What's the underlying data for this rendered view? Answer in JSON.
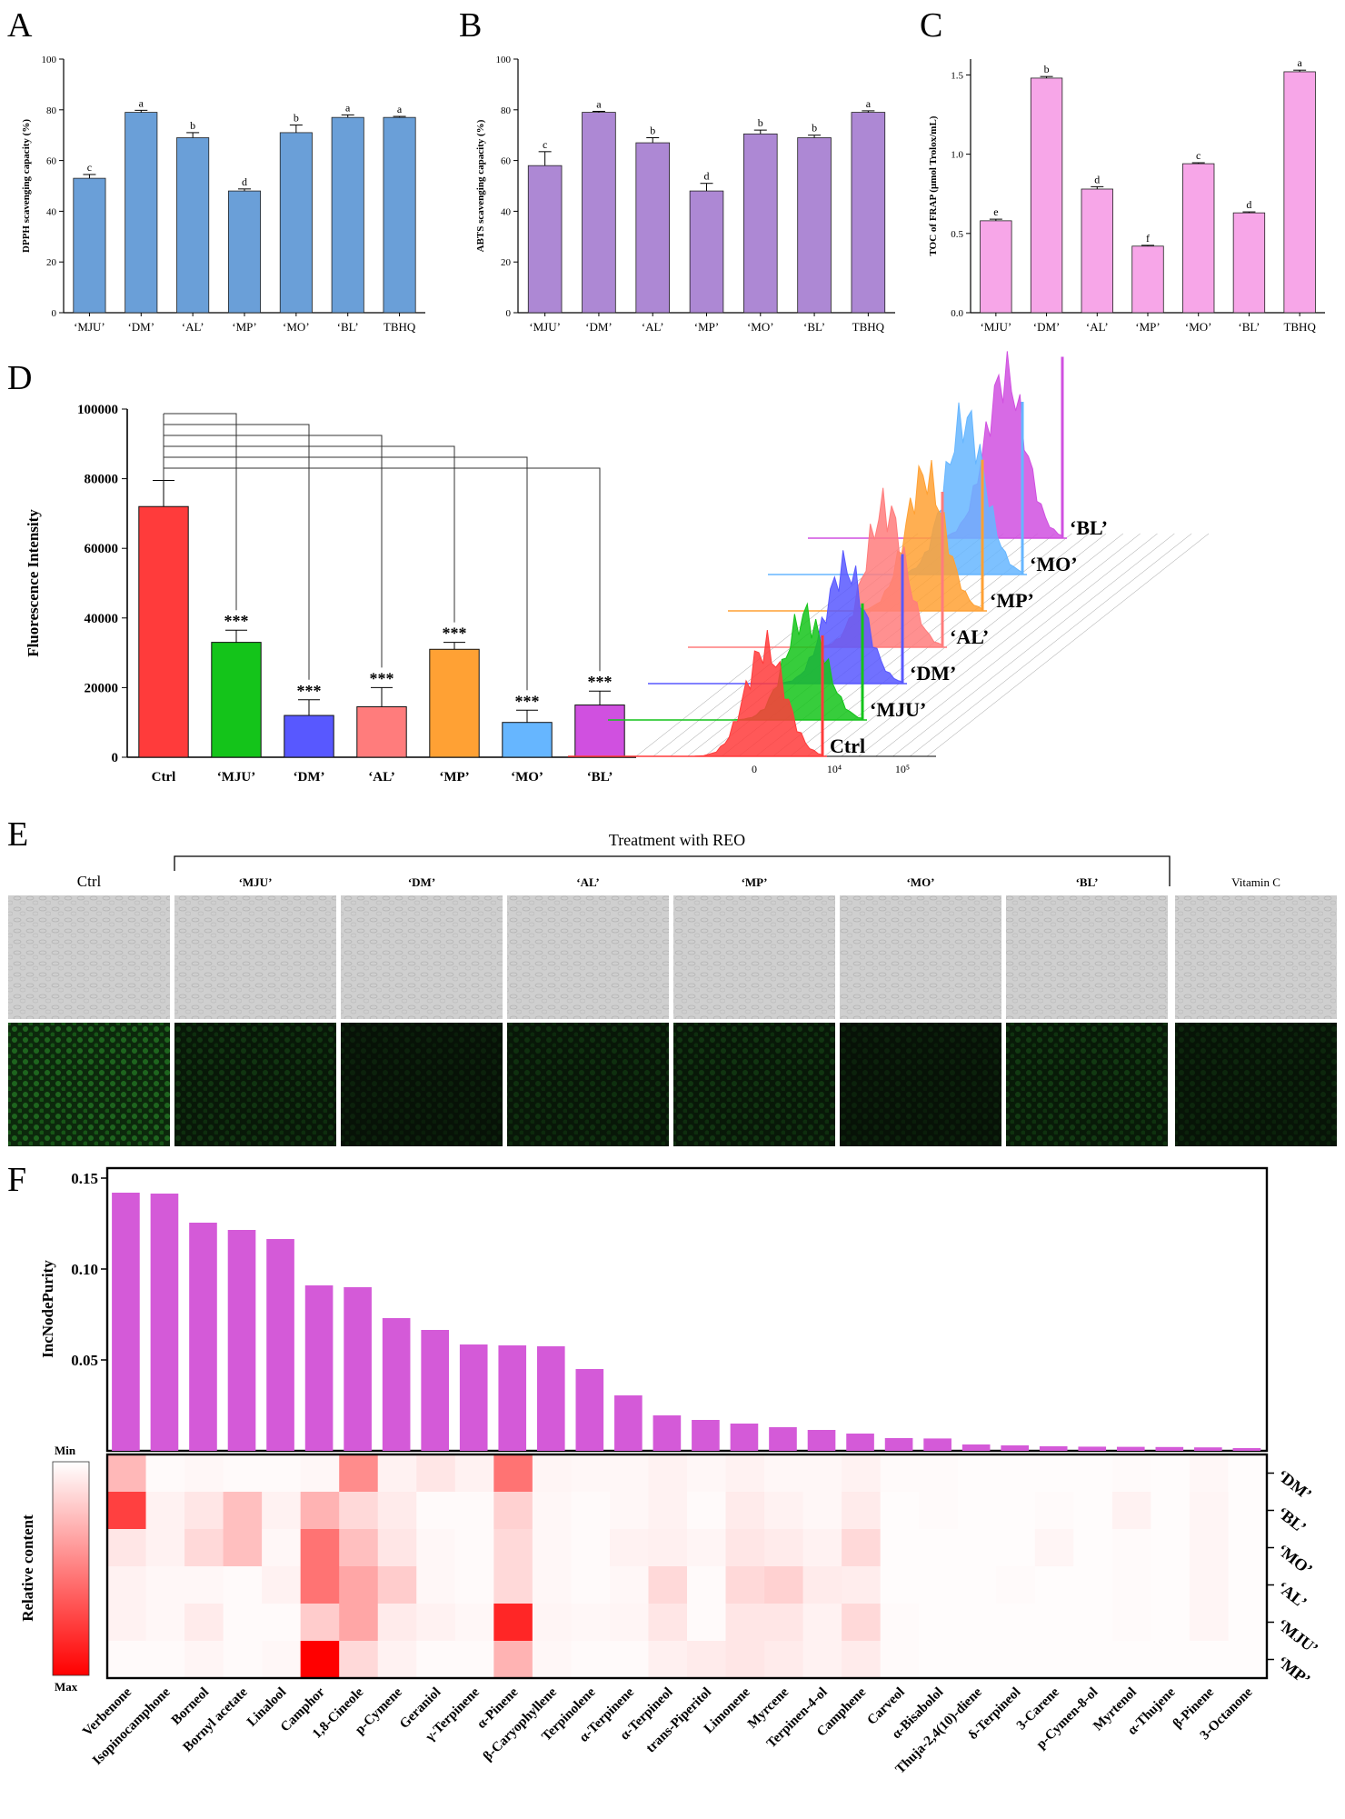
{
  "figure": {
    "panels": {
      "A": "A",
      "B": "B",
      "C": "C",
      "D": "D",
      "E": "E",
      "F": "F"
    }
  },
  "colors": {
    "dpph": "#6a9fd8",
    "abts": "#ad88d4",
    "frap": "#f7a6e8",
    "d": [
      "#ff3b3b",
      "#14c41a",
      "#5858ff",
      "#ff7c7c",
      "#ffa134",
      "#66b6ff",
      "#d050e0"
    ],
    "f_bar": "#d45ad8"
  },
  "chart_data": [
    {
      "id": "A",
      "type": "bar",
      "title": "",
      "ylabel": "DPPH scavenging capacity (%)",
      "categories": [
        "‘MJU’",
        "‘DM’",
        "‘AL’",
        "‘MP’",
        "‘MO’",
        "‘BL’",
        "TBHQ"
      ],
      "values": [
        53,
        79,
        69,
        48,
        71,
        77,
        77
      ],
      "errors": [
        1.5,
        0.8,
        2,
        0.8,
        3,
        1,
        0.4
      ],
      "letters": [
        "c",
        "a",
        "b",
        "d",
        "b",
        "a",
        "a"
      ],
      "yticks": [
        0,
        20,
        40,
        60,
        80,
        100
      ],
      "ylim": [
        0,
        100
      ]
    },
    {
      "id": "B",
      "type": "bar",
      "title": "",
      "ylabel": "ABTS scavenging capacity (%)",
      "categories": [
        "‘MJU’",
        "‘DM’",
        "‘AL’",
        "‘MP’",
        "‘MO’",
        "‘BL’",
        "TBHQ"
      ],
      "values": [
        58,
        79,
        67,
        48,
        70.5,
        69,
        79
      ],
      "errors": [
        5.5,
        0.4,
        2,
        3,
        1.5,
        1,
        0.6
      ],
      "letters": [
        "c",
        "a",
        "b",
        "d",
        "b",
        "b",
        "a"
      ],
      "yticks": [
        0,
        20,
        40,
        60,
        80,
        100
      ],
      "ylim": [
        0,
        100
      ]
    },
    {
      "id": "C",
      "type": "bar",
      "title": "",
      "ylabel": "TOC of FRAP (μmol Trolox/mL)",
      "categories": [
        "‘MJU’",
        "‘DM’",
        "‘AL’",
        "‘MP’",
        "‘MO’",
        "‘BL’",
        "TBHQ"
      ],
      "values": [
        0.58,
        1.48,
        0.78,
        0.42,
        0.94,
        0.63,
        1.52
      ],
      "errors": [
        0.01,
        0.01,
        0.015,
        0.005,
        0.006,
        0.006,
        0.01
      ],
      "letters": [
        "e",
        "b",
        "d",
        "f",
        "c",
        "d",
        "a"
      ],
      "yticks": [
        "0.0",
        "0.5",
        "1.0",
        "1.5"
      ],
      "ytick_values": [
        0,
        0.5,
        1.0,
        1.5
      ],
      "ylim": [
        0,
        1.6
      ]
    },
    {
      "id": "D",
      "type": "bar",
      "title": "",
      "ylabel": "Fluorescence Intensity",
      "categories": [
        "Ctrl",
        "‘MJU’",
        "‘DM’",
        "‘AL’",
        "‘MP’",
        "‘MO’",
        "‘BL’"
      ],
      "values": [
        72000,
        33000,
        12000,
        14500,
        31000,
        10000,
        15000
      ],
      "errors": [
        7500,
        3500,
        4500,
        5500,
        2000,
        3500,
        4000
      ],
      "sig": [
        "",
        "***",
        "***",
        "***",
        "***",
        "***",
        "***"
      ],
      "yticks": [
        "0",
        "20000",
        "40000",
        "60000",
        "80000",
        "100000"
      ],
      "ytick_values": [
        0,
        20000,
        40000,
        60000,
        80000,
        100000
      ],
      "ylim": [
        0,
        100000
      ],
      "histogram": {
        "labels": [
          "Ctrl",
          "‘MJU’",
          "‘DM’",
          "‘AL’",
          "‘MP’",
          "‘MO’",
          "‘BL’"
        ],
        "xticks": [
          "0",
          "10⁴",
          "10⁵"
        ]
      }
    },
    {
      "id": "F",
      "type": "bar",
      "title": "",
      "ylabel": "IncNodePurity",
      "yticks": [
        "0.05",
        "0.10",
        "0.15"
      ],
      "ytick_values": [
        0.05,
        0.1,
        0.15
      ],
      "ylim": [
        0,
        0.152
      ],
      "categories": [
        "Verbenone",
        "Isopinocamphone",
        "Borneol",
        "Bornyl acetate",
        "Linalool",
        "Camphor",
        "1,8-Cineole",
        "p-Cymene",
        "Geraniol",
        "γ-Terpinene",
        "α-Pinene",
        "β-Caryophyllene",
        "Terpinolene",
        "α-Terpinene",
        "α-Terpineol",
        "trans-Piperitol",
        "Limonene",
        "Myrcene",
        "Terpinen-4-ol",
        "Camphene",
        "Carveol",
        "α-Bisabolol",
        "Thuja-2,4(10)-diene",
        "δ-Terpineol",
        "3-Carene",
        "p-Cymen-8-ol",
        "Myrtenol",
        "α-Thujene",
        "β-Pinene",
        "3-Octanone"
      ],
      "values": [
        0.142,
        0.1415,
        0.1255,
        0.1215,
        0.1165,
        0.091,
        0.09,
        0.073,
        0.0665,
        0.0585,
        0.058,
        0.0575,
        0.045,
        0.0305,
        0.0195,
        0.017,
        0.015,
        0.013,
        0.0115,
        0.0095,
        0.007,
        0.0068,
        0.0035,
        0.003,
        0.0025,
        0.0023,
        0.0022,
        0.0021,
        0.0019,
        0.0015
      ],
      "heatmap": {
        "rows": [
          "‘DM’",
          "‘BL’",
          "‘MO’",
          "‘AL’",
          "‘MJU’",
          "‘MP’"
        ],
        "legend_title": "Relative content",
        "legend_min": "Min",
        "legend_max": "Max",
        "values": [
          [
            0.28,
            0.02,
            0.03,
            0.02,
            0.02,
            0.03,
            0.45,
            0.05,
            0.1,
            0.05,
            0.55,
            0.04,
            0.03,
            0.03,
            0.05,
            0.03,
            0.05,
            0.03,
            0.03,
            0.05,
            0.02,
            0.02,
            0.01,
            0.01,
            0.01,
            0.01,
            0.02,
            0.01,
            0.03,
            0.01
          ],
          [
            0.75,
            0.05,
            0.1,
            0.25,
            0.05,
            0.3,
            0.15,
            0.08,
            0.02,
            0.02,
            0.18,
            0.03,
            0.02,
            0.03,
            0.05,
            0.02,
            0.08,
            0.05,
            0.03,
            0.08,
            0.01,
            0.02,
            0.01,
            0.01,
            0.02,
            0.01,
            0.05,
            0.01,
            0.04,
            0.01
          ],
          [
            0.1,
            0.05,
            0.15,
            0.25,
            0.03,
            0.55,
            0.25,
            0.1,
            0.03,
            0.02,
            0.15,
            0.03,
            0.02,
            0.05,
            0.06,
            0.04,
            0.1,
            0.08,
            0.05,
            0.15,
            0.01,
            0.01,
            0.01,
            0.01,
            0.04,
            0.01,
            0.02,
            0.01,
            0.04,
            0.01
          ],
          [
            0.05,
            0.03,
            0.03,
            0.02,
            0.05,
            0.55,
            0.35,
            0.2,
            0.03,
            0.02,
            0.15,
            0.03,
            0.02,
            0.03,
            0.15,
            0.02,
            0.15,
            0.18,
            0.08,
            0.07,
            0.01,
            0.01,
            0.01,
            0.02,
            0.01,
            0.01,
            0.02,
            0.01,
            0.04,
            0.01
          ],
          [
            0.05,
            0.03,
            0.08,
            0.02,
            0.02,
            0.2,
            0.35,
            0.08,
            0.05,
            0.03,
            0.85,
            0.04,
            0.03,
            0.04,
            0.1,
            0.02,
            0.1,
            0.1,
            0.05,
            0.15,
            0.02,
            0.01,
            0.01,
            0.01,
            0.01,
            0.01,
            0.02,
            0.01,
            0.04,
            0.01
          ],
          [
            0.02,
            0.02,
            0.04,
            0.02,
            0.03,
            1.0,
            0.15,
            0.05,
            0.02,
            0.02,
            0.3,
            0.03,
            0.02,
            0.02,
            0.06,
            0.08,
            0.1,
            0.08,
            0.05,
            0.08,
            0.02,
            0.01,
            0.01,
            0.01,
            0.01,
            0.01,
            0.01,
            0.01,
            0.01,
            0.01
          ]
        ]
      }
    }
  ],
  "panel_e": {
    "header": "Treatment with REO",
    "columns": [
      "Ctrl",
      "‘MJU’",
      "‘DM’",
      "‘AL’",
      "‘MP’",
      "‘MO’",
      "‘BL’",
      "Vitamin C"
    ]
  }
}
